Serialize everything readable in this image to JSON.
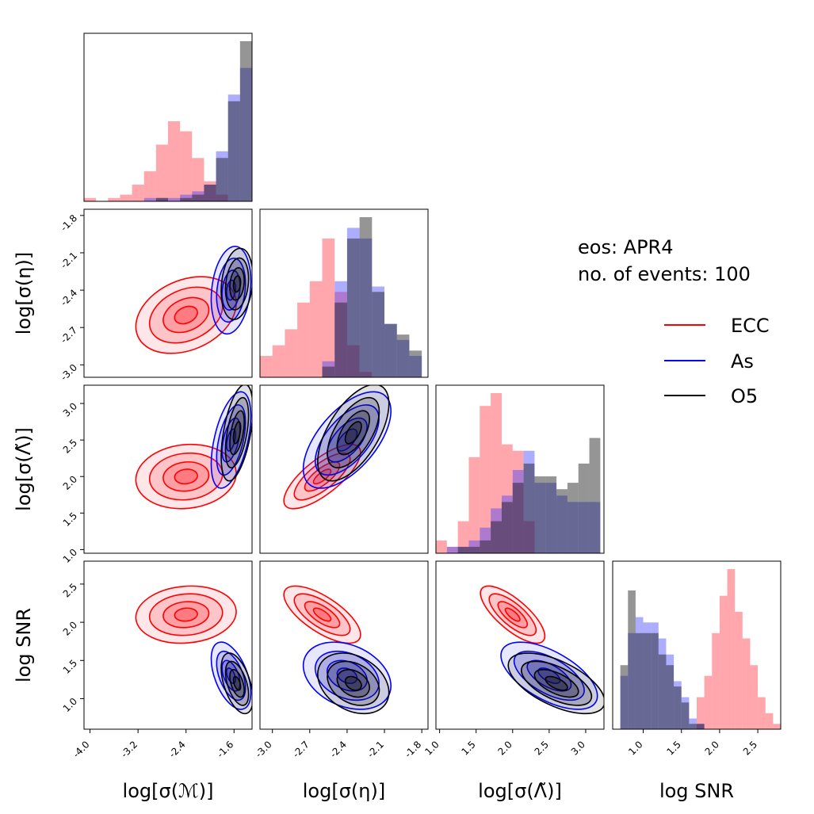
{
  "chart_data": {
    "type": "corner",
    "annotation": [
      "eos: APR4",
      "no. of events: 100"
    ],
    "parameters": [
      {
        "label": "log[σ(ℳ)]",
        "range": [
          -4.1,
          -1.3
        ],
        "ticks": [
          "-4.0",
          "-3.2",
          "-2.4",
          "-1.6"
        ],
        "tick_values": [
          -4.0,
          -3.2,
          -2.4,
          -1.6
        ]
      },
      {
        "label": "log[σ(η)]",
        "range": [
          -3.1,
          -1.75
        ],
        "ticks": [
          "-3.0",
          "-2.7",
          "-2.4",
          "-2.1",
          "-1.8"
        ],
        "tick_values": [
          -3.0,
          -2.7,
          -2.4,
          -2.1,
          -1.8
        ]
      },
      {
        "label": "log[σ(Λ̃)]",
        "range": [
          0.95,
          3.25
        ],
        "ticks": [
          "1.0",
          "1.5",
          "2.0",
          "2.5",
          "3.0"
        ],
        "tick_values": [
          1.0,
          1.5,
          2.0,
          2.5,
          3.0
        ]
      },
      {
        "label": "log SNR",
        "range": [
          0.6,
          2.8
        ],
        "ticks": [
          "1.0",
          "1.5",
          "2.0",
          "2.5"
        ],
        "tick_values": [
          1.0,
          1.5,
          2.0,
          2.5
        ]
      }
    ],
    "y_ticks": {
      "1": [
        "-1.8",
        "-2.1",
        "-2.4",
        "-2.7",
        "-3.0"
      ],
      "2": [
        "3.0",
        "2.5",
        "2.0",
        "1.5",
        "1.0"
      ],
      "3": [
        "2.5",
        "2.0",
        "1.5",
        "1.0"
      ]
    },
    "series": [
      {
        "name": "ECC",
        "color": "#ff0000",
        "fill": "rgba(255,60,70,0.45)",
        "means": [
          -2.4,
          -2.6,
          2.0,
          2.1
        ],
        "sds": [
          0.38,
          0.14,
          0.2,
          0.17
        ],
        "corr": {
          "0-1": 0.3,
          "0-2": 0.1,
          "0-3": 0.1,
          "1-2": 0.75,
          "1-3": -0.7,
          "2-3": -0.75
        }
      },
      {
        "name": "As",
        "color": "#0000ff",
        "fill": "rgba(60,60,255,0.42)",
        "means": [
          -1.65,
          -2.4,
          2.5,
          1.3
        ],
        "sds": [
          0.15,
          0.16,
          0.3,
          0.2
        ],
        "corr": {
          "0-1": 0.2,
          "0-2": 0.5,
          "0-3": -0.5,
          "1-2": 0.6,
          "1-3": -0.3,
          "2-3": -0.6
        }
      },
      {
        "name": "O5",
        "color": "#000000",
        "fill": "rgba(20,20,20,0.45)",
        "means": [
          -1.55,
          -2.35,
          2.6,
          1.2
        ],
        "sds": [
          0.12,
          0.13,
          0.3,
          0.18
        ],
        "corr": {
          "0-1": 0.2,
          "0-2": 0.5,
          "0-3": -0.5,
          "1-2": 0.6,
          "1-3": -0.3,
          "2-3": -0.6
        }
      }
    ],
    "histograms": {
      "0": {
        "bins": [
          -4.1,
          -3.9,
          -3.7,
          -3.5,
          -3.3,
          -3.1,
          -2.9,
          -2.7,
          -2.5,
          -2.3,
          -2.1,
          -1.9,
          -1.7,
          -1.5,
          -1.3
        ],
        "ECC": [
          1,
          0,
          1,
          2,
          5,
          9,
          17,
          24,
          21,
          13,
          6,
          2,
          0,
          0
        ],
        "As": [
          0,
          0,
          0,
          0,
          0,
          1,
          1,
          1,
          2,
          3,
          5,
          15,
          32,
          40
        ],
        "O5": [
          0,
          0,
          0,
          0,
          0,
          0,
          1,
          0,
          1,
          2,
          5,
          13,
          30,
          48
        ]
      },
      "1": {
        "bins": [
          -3.1,
          -3.0,
          -2.9,
          -2.8,
          -2.7,
          -2.6,
          -2.5,
          -2.4,
          -2.3,
          -2.2,
          -2.1,
          -2.0,
          -1.9,
          -1.8
        ],
        "ECC": [
          4,
          6,
          9,
          14,
          18,
          26,
          16,
          6,
          1,
          0,
          0,
          0,
          0
        ],
        "As": [
          0,
          0,
          0,
          0,
          0,
          3,
          18,
          28,
          26,
          17,
          10,
          7,
          4
        ],
        "O5": [
          0,
          0,
          0,
          0,
          0,
          2,
          14,
          26,
          30,
          16,
          10,
          8,
          5
        ]
      },
      "2": {
        "bins": [
          0.95,
          1.1,
          1.25,
          1.4,
          1.55,
          1.7,
          1.85,
          2.0,
          2.15,
          2.3,
          2.45,
          2.6,
          2.75,
          2.9,
          3.05,
          3.2
        ],
        "ECC": [
          2,
          1,
          5,
          15,
          23,
          25,
          17,
          16,
          5,
          0,
          0,
          0,
          0,
          0,
          0
        ],
        "As": [
          0,
          1,
          1,
          2,
          4,
          7,
          9,
          13,
          16,
          11,
          11,
          9,
          8,
          8,
          8
        ],
        "O5": [
          0,
          0,
          1,
          1,
          2,
          5,
          8,
          11,
          14,
          12,
          12,
          10,
          11,
          14,
          18
        ]
      },
      "3": {
        "bins": [
          0.6,
          0.7,
          0.8,
          0.9,
          1.0,
          1.1,
          1.2,
          1.3,
          1.4,
          1.5,
          1.6,
          1.7,
          1.8,
          1.9,
          2.0,
          2.1,
          2.2,
          2.3,
          2.4,
          2.5,
          2.6,
          2.7,
          2.8
        ],
        "ECC": [
          0,
          0,
          0,
          0,
          0,
          0,
          0,
          0,
          0,
          0,
          0,
          6,
          10,
          18,
          25,
          30,
          22,
          17,
          12,
          6,
          3,
          1
        ],
        "As": [
          0,
          10,
          18,
          21,
          20,
          20,
          17,
          14,
          9,
          6,
          2,
          1,
          0,
          0,
          0,
          0,
          0,
          0,
          0,
          0,
          0,
          0
        ],
        "O5": [
          0,
          12,
          26,
          18,
          18,
          18,
          14,
          12,
          8,
          5,
          1,
          1,
          0,
          0,
          0,
          0,
          0,
          0,
          0,
          0,
          0,
          0
        ]
      }
    },
    "legend": {
      "position": "right-middle",
      "entries": [
        "ECC",
        "As",
        "O5"
      ]
    }
  }
}
